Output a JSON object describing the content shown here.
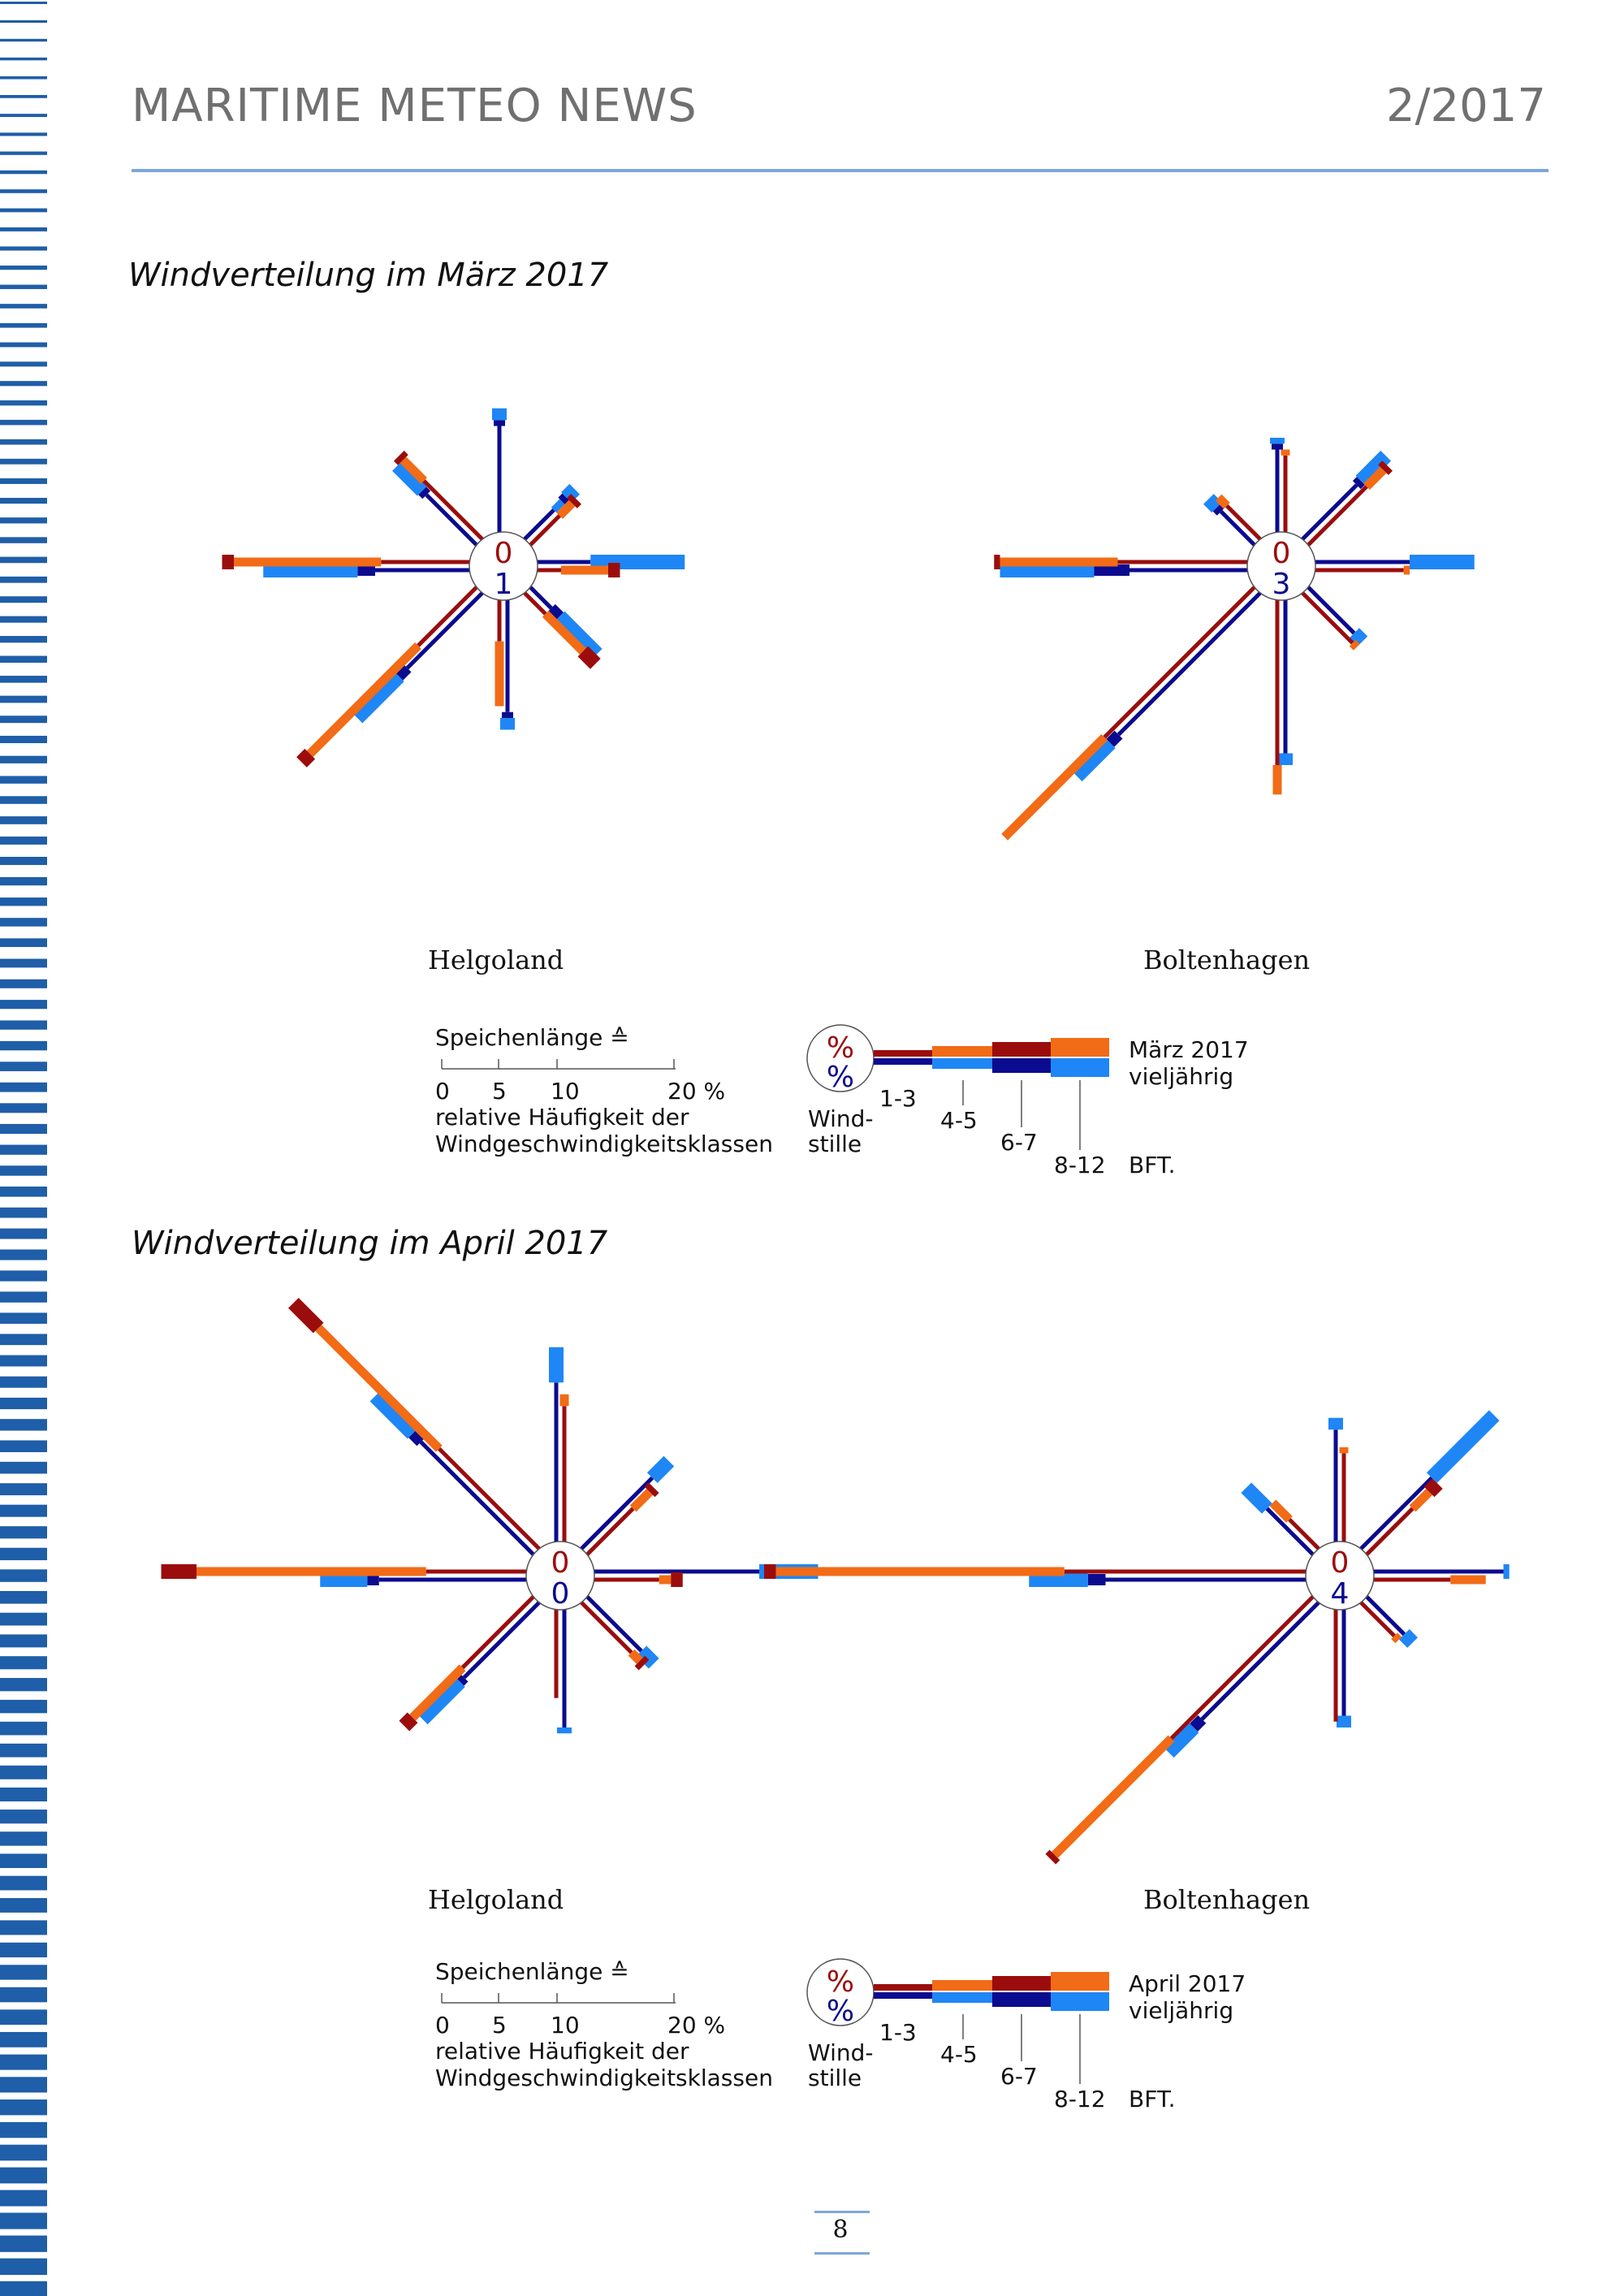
{
  "header": {
    "title": "MARITIME METEO NEWS",
    "issue": "2/2017"
  },
  "sections": [
    {
      "title": "Windverteilung im März 2017",
      "stations": [
        {
          "name": "Helgoland",
          "calm_current": "0",
          "calm_longterm": "1",
          "spokes": [
            {
              "dir": "N",
              "c13": 0.0,
              "c45": 0.0,
              "c67": 0.0,
              "c812": 0.0,
              "l13": 9.0,
              "l45": 0.0,
              "l67": 0.5,
              "l812": 1.0
            },
            {
              "dir": "NE",
              "c13": 3.5,
              "c45": 1.5,
              "c67": 0.5,
              "c812": 0.0,
              "l13": 3.5,
              "l45": 1.0,
              "l67": 0.5,
              "l812": 1.0
            },
            {
              "dir": "E",
              "c13": 2.0,
              "c45": 4.0,
              "c67": 1.0,
              "c812": 0.0,
              "l13": 4.5,
              "l45": 0.0,
              "l67": 0.0,
              "l812": 8.0
            },
            {
              "dir": "SE",
              "c13": 2.5,
              "c45": 4.5,
              "c67": 1.5,
              "c812": 0.0,
              "l13": 2.5,
              "l45": 0.0,
              "l67": 1.0,
              "l812": 4.5
            },
            {
              "dir": "S",
              "c13": 3.5,
              "c45": 5.5,
              "c67": 0.0,
              "c812": 0.0,
              "l13": 9.5,
              "l45": 0.0,
              "l67": 0.5,
              "l812": 1.0
            },
            {
              "dir": "SW",
              "c13": 7.0,
              "c45": 13.0,
              "c67": 1.0,
              "c812": 0.0,
              "l13": 9.0,
              "l45": 0.0,
              "l67": 1.0,
              "l812": 5.0
            },
            {
              "dir": "W",
              "c13": 7.5,
              "c45": 12.5,
              "c67": 1.0,
              "c812": 0.0,
              "l13": 8.0,
              "l45": 0.0,
              "l67": 1.5,
              "l812": 8.0
            },
            {
              "dir": "NW",
              "c13": 7.0,
              "c45": 2.5,
              "c67": 0.5,
              "c812": 0.0,
              "l13": 6.0,
              "l45": 0.0,
              "l67": 0.5,
              "l812": 3.0
            }
          ]
        },
        {
          "name": "Boltenhagen",
          "calm_current": "0",
          "calm_longterm": "3",
          "spokes": [
            {
              "dir": "N",
              "c13": 6.5,
              "c45": 0.5,
              "c67": 0.0,
              "c812": 0.0,
              "l13": 7.0,
              "l45": 0.0,
              "l67": 0.5,
              "l812": 0.5
            },
            {
              "dir": "NE",
              "c13": 7.0,
              "c45": 2.0,
              "c67": 0.5,
              "c812": 0.0,
              "l13": 6.5,
              "l45": 0.0,
              "l67": 0.5,
              "l812": 3.0
            },
            {
              "dir": "E",
              "c13": 7.5,
              "c45": 0.5,
              "c67": 0.0,
              "c812": 0.0,
              "l13": 8.0,
              "l45": 0.0,
              "l67": 0.0,
              "l812": 5.5
            },
            {
              "dir": "SE",
              "c13": 6.0,
              "c45": 0.5,
              "c67": 0.0,
              "c812": 0.0,
              "l13": 5.5,
              "l45": 0.0,
              "l67": 0.0,
              "l812": 1.0
            },
            {
              "dir": "S",
              "c13": 14.0,
              "c45": 2.5,
              "c67": 0.0,
              "c812": 0.0,
              "l13": 13.0,
              "l45": 0.0,
              "l67": 0.0,
              "l812": 1.0
            },
            {
              "dir": "SW",
              "c13": 18.0,
              "c45": 12.0,
              "c67": 0.0,
              "c812": 0.0,
              "l13": 17.0,
              "l45": 0.0,
              "l67": 1.0,
              "l812": 4.0
            },
            {
              "dir": "W",
              "c13": 11.0,
              "c45": 10.0,
              "c67": 0.5,
              "c812": 0.0,
              "l13": 10.0,
              "l45": 0.0,
              "l67": 3.0,
              "l812": 8.0
            },
            {
              "dir": "NW",
              "c13": 4.0,
              "c45": 1.0,
              "c67": 0.0,
              "c812": 0.0,
              "l13": 4.0,
              "l45": 0.0,
              "l67": 0.5,
              "l812": 1.0
            }
          ]
        }
      ],
      "legend": {
        "scale_title": "Speichenlänge ≙",
        "scale_ticks": [
          "0",
          "5",
          "10",
          "20 %"
        ],
        "scale_caption_1": "relative Häufigkeit der",
        "scale_caption_2": "Windgeschwindigkeitsklassen",
        "calm_label_1": "Wind-",
        "calm_label_2": "stille",
        "class_labels": [
          "1-3",
          "4-5",
          "6-7",
          "8-12"
        ],
        "bft_label": "BFT.",
        "current_label": "März 2017",
        "longterm_label": "vieljährig",
        "percent_symbol": "%"
      }
    },
    {
      "title": "Windverteilung im April 2017",
      "stations": [
        {
          "name": "Helgoland",
          "calm_current": "0",
          "calm_longterm": "0",
          "spokes": [
            {
              "dir": "N",
              "c13": 11.5,
              "c45": 1.0,
              "c67": 0.0,
              "c812": 0.0,
              "l13": 13.5,
              "l45": 0.0,
              "l67": 0.0,
              "l812": 3.0
            },
            {
              "dir": "NE",
              "c13": 5.5,
              "c45": 2.0,
              "c67": 0.5,
              "c812": 0.0,
              "l13": 8.5,
              "l45": 0.0,
              "l67": 0.0,
              "l812": 2.0
            },
            {
              "dir": "E",
              "c13": 5.5,
              "c45": 1.0,
              "c67": 1.0,
              "c812": 0.0,
              "l13": 14.0,
              "l45": 0.0,
              "l67": 0.0,
              "l812": 5.0
            },
            {
              "dir": "SE",
              "c13": 6.0,
              "c45": 1.0,
              "c67": 0.5,
              "c812": 0.0,
              "l13": 6.5,
              "l45": 0.0,
              "l67": 0.0,
              "l812": 1.5
            },
            {
              "dir": "S",
              "c13": 7.5,
              "c45": 0.0,
              "c67": 0.0,
              "c812": 0.0,
              "l13": 10.0,
              "l45": 0.0,
              "l67": 0.0,
              "l812": 0.5
            },
            {
              "dir": "SW",
              "c13": 8.5,
              "c45": 6.0,
              "c67": 1.0,
              "c812": 0.0,
              "l13": 9.0,
              "l45": 0.0,
              "l67": 0.5,
              "l812": 4.5
            },
            {
              "dir": "W",
              "c13": 8.5,
              "c45": 19.5,
              "c67": 3.0,
              "c812": 0.0,
              "l13": 12.5,
              "l45": 0.0,
              "l67": 1.0,
              "l812": 4.0
            },
            {
              "dir": "NW",
              "c13": 12.0,
              "c45": 14.5,
              "c67": 3.0,
              "c812": 0.0,
              "l13": 13.5,
              "l45": 0.0,
              "l67": 1.0,
              "l812": 4.5
            }
          ]
        },
        {
          "name": "Boltenhagen",
          "calm_current": "0",
          "calm_longterm": "4",
          "spokes": [
            {
              "dir": "N",
              "c13": 7.5,
              "c45": 0.5,
              "c67": 0.0,
              "c812": 0.0,
              "l13": 9.5,
              "l45": 0.0,
              "l67": 0.0,
              "l812": 1.0
            },
            {
              "dir": "NE",
              "c13": 5.5,
              "c45": 2.0,
              "c67": 1.0,
              "c812": 0.0,
              "l13": 8.5,
              "l45": 0.0,
              "l67": 0.0,
              "l812": 7.5
            },
            {
              "dir": "E",
              "c13": 6.5,
              "c45": 3.0,
              "c67": 0.0,
              "c812": 0.0,
              "l13": 11.0,
              "l45": 0.0,
              "l67": 0.0,
              "l812": 0.5
            },
            {
              "dir": "SE",
              "c13": 4.0,
              "c45": 0.5,
              "c67": 0.0,
              "c812": 0.0,
              "l13": 4.5,
              "l45": 0.0,
              "l67": 0.0,
              "l812": 1.0
            },
            {
              "dir": "S",
              "c13": 9.5,
              "c45": 0.0,
              "c67": 0.0,
              "c812": 0.0,
              "l13": 9.0,
              "l45": 0.0,
              "l67": 0.0,
              "l812": 1.0
            },
            {
              "dir": "SW",
              "c13": 17.0,
              "c45": 14.0,
              "c67": 0.5,
              "c812": 0.0,
              "l13": 14.0,
              "l45": 0.0,
              "l67": 1.0,
              "l812": 3.0
            },
            {
              "dir": "W",
              "c13": 20.5,
              "c45": 24.5,
              "c67": 1.0,
              "c812": 0.0,
              "l13": 17.0,
              "l45": 0.0,
              "l67": 1.5,
              "l812": 5.0
            },
            {
              "dir": "NW",
              "c13": 3.5,
              "c45": 2.0,
              "c67": 0.0,
              "c812": 0.0,
              "l13": 5.5,
              "l45": 0.0,
              "l67": 0.0,
              "l812": 2.5
            }
          ]
        }
      ],
      "legend": {
        "scale_title": "Speichenlänge ≙",
        "scale_ticks": [
          "0",
          "5",
          "10",
          "20 %"
        ],
        "scale_caption_1": "relative Häufigkeit der",
        "scale_caption_2": "Windgeschwindigkeitsklassen",
        "calm_label_1": "Wind-",
        "calm_label_2": "stille",
        "class_labels": [
          "1-3",
          "4-5",
          "6-7",
          "8-12"
        ],
        "bft_label": "BFT.",
        "current_label": "April 2017",
        "longterm_label": "vieljährig",
        "percent_symbol": "%"
      }
    }
  ],
  "page_number": "8",
  "colors": {
    "current_13": "#9b0d0d",
    "current_45": "#f26b16",
    "current_67": "#9b0d0d",
    "longterm_13": "#0b0b8f",
    "longterm_45": "#1f86f5",
    "longterm_67": "#0b0b8f",
    "longterm_812": "#1f86f5",
    "calm_current_text": "#9b0d0d",
    "calm_longterm_text": "#0b0b8f",
    "rule": "#7da7d9",
    "strip": "#1f5ea8"
  }
}
